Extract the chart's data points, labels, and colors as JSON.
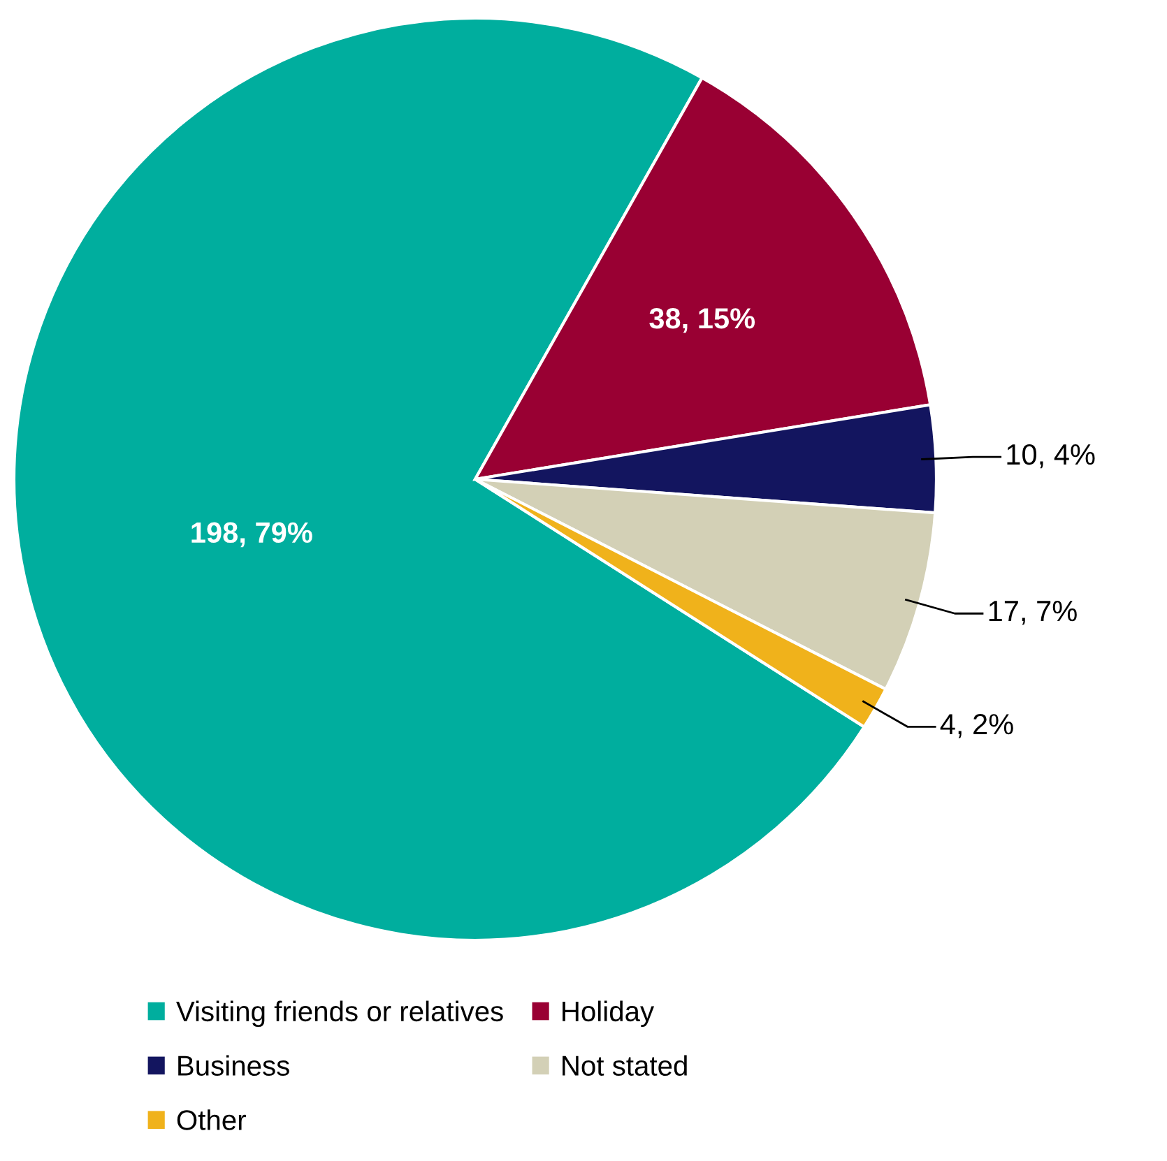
{
  "chart_data": {
    "type": "pie",
    "categories": [
      "Visiting friends or relatives",
      "Holiday",
      "Business",
      "Not stated",
      "Other"
    ],
    "values": [
      198,
      38,
      10,
      17,
      4
    ],
    "value_labels": [
      "198, 79%",
      "38, 15%",
      "10, 4%",
      "17, 7%",
      "4, 2%"
    ],
    "colors": [
      "#00ae9e",
      "#990033",
      "#13155f",
      "#d3d0b6",
      "#f0b21b"
    ],
    "legend": "bottom"
  }
}
